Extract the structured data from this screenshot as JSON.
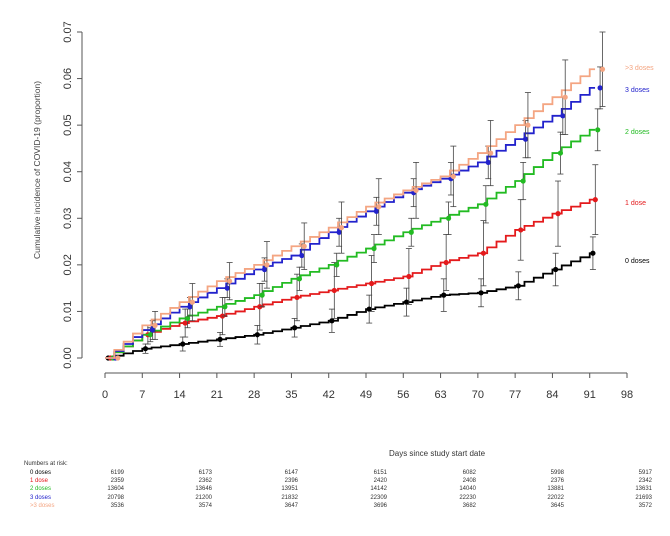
{
  "chart_data": {
    "type": "line",
    "title": "",
    "xlabel": "Days since study start date",
    "ylabel": "Cumulative incidence of COVID-19 (proportion)",
    "xlim": [
      0,
      98
    ],
    "ylim": [
      0,
      0.07
    ],
    "xticks": [
      "0",
      "7",
      "14",
      "21",
      "28",
      "35",
      "42",
      "49",
      "56",
      "63",
      "70",
      "77",
      "84",
      "91",
      "98"
    ],
    "yticks": [
      "0.00",
      "0.01",
      "0.02",
      "0.03",
      "0.04",
      "0.05",
      "0.06",
      "0.07"
    ],
    "x": [
      0,
      7,
      14,
      21,
      28,
      35,
      42,
      49,
      56,
      63,
      70,
      77,
      84,
      91
    ],
    "series": [
      {
        "name": "0 doses",
        "color": "#000000",
        "values": [
          0,
          0.002,
          0.003,
          0.004,
          0.005,
          0.0065,
          0.008,
          0.0105,
          0.012,
          0.0135,
          0.014,
          0.0155,
          0.019,
          0.0225
        ],
        "ci": [
          0,
          0.001,
          0.0015,
          0.0015,
          0.002,
          0.002,
          0.0025,
          0.003,
          0.003,
          0.0035,
          0.003,
          0.003,
          0.0035,
          0.0035
        ]
      },
      {
        "name": "1 dose",
        "color": "#e41a1c",
        "values": [
          0,
          0.005,
          0.0075,
          0.009,
          0.011,
          0.013,
          0.0145,
          0.016,
          0.0175,
          0.0205,
          0.0225,
          0.0275,
          0.031,
          0.034
        ],
        "ci": [
          0,
          0.002,
          0.003,
          0.004,
          0.005,
          0.005,
          0.006,
          0.006,
          0.006,
          0.006,
          0.007,
          0.0065,
          0.007,
          0.0075
        ]
      },
      {
        "name": "2 doses",
        "color": "#22bb22",
        "values": [
          0,
          0.005,
          0.0085,
          0.011,
          0.0135,
          0.017,
          0.02,
          0.0235,
          0.027,
          0.03,
          0.033,
          0.038,
          0.044,
          0.049
        ],
        "ci": [
          0,
          0.0015,
          0.002,
          0.002,
          0.0025,
          0.0025,
          0.0025,
          0.003,
          0.003,
          0.0035,
          0.004,
          0.004,
          0.0045,
          0.0045
        ]
      },
      {
        "name": "3 doses",
        "color": "#2222cc",
        "values": [
          0,
          0.006,
          0.011,
          0.015,
          0.019,
          0.022,
          0.027,
          0.0315,
          0.0355,
          0.0385,
          0.042,
          0.047,
          0.052,
          0.058
        ],
        "ci": [
          0,
          0.002,
          0.002,
          0.002,
          0.0025,
          0.0025,
          0.003,
          0.003,
          0.003,
          0.0035,
          0.0035,
          0.004,
          0.004,
          0.0045
        ]
      },
      {
        "name": ">3 doses",
        "color": "#f4a582",
        "values": [
          0,
          0.007,
          0.012,
          0.0165,
          0.02,
          0.024,
          0.028,
          0.0325,
          0.036,
          0.039,
          0.044,
          0.05,
          0.056,
          0.062
        ],
        "ci": [
          0,
          0.003,
          0.004,
          0.004,
          0.005,
          0.005,
          0.0055,
          0.006,
          0.006,
          0.0065,
          0.007,
          0.007,
          0.008,
          0.008
        ]
      }
    ],
    "grid": false,
    "legend": "right, end of lines"
  },
  "risk_table": {
    "title": "Numbers at risk:",
    "rows": [
      {
        "label": "0 doses",
        "color": "#000000",
        "values": [
          "6199",
          "6173",
          "6147",
          "6151",
          "6082",
          "5998",
          "5917"
        ]
      },
      {
        "label": "1 dose",
        "color": "#e41a1c",
        "values": [
          "2359",
          "2362",
          "2396",
          "2420",
          "2408",
          "2376",
          "2342"
        ]
      },
      {
        "label": "2 doses",
        "color": "#22bb22",
        "values": [
          "13604",
          "13646",
          "13951",
          "14142",
          "14040",
          "13881",
          "13631"
        ]
      },
      {
        "label": "3 doses",
        "color": "#2222cc",
        "values": [
          "20798",
          "21200",
          "21832",
          "22309",
          "22230",
          "22022",
          "21693"
        ]
      },
      {
        "label": ">3 doses",
        "color": "#f4a582",
        "values": [
          "3536",
          "3574",
          "3647",
          "3696",
          "3682",
          "3645",
          "3572"
        ]
      }
    ]
  }
}
